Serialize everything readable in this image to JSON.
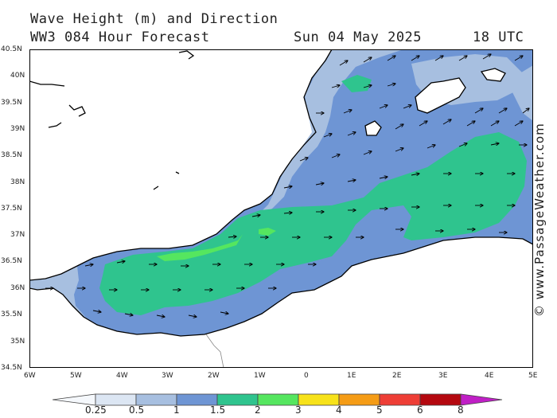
{
  "header": {
    "line1": "Wave Height (m) and Direction",
    "model": "WW3 084 Hour Forecast",
    "date": "Sun 04 May 2025",
    "time": "18 UTC"
  },
  "credit": "© www.PassageWeather.com",
  "axes": {
    "lat_labels": [
      "40.5N",
      "40N",
      "39.5N",
      "39N",
      "38.5N",
      "38N",
      "37.5N",
      "37N",
      "36.5N",
      "36N",
      "35.5N",
      "35N",
      "34.5N"
    ],
    "lon_labels": [
      "6W",
      "5W",
      "4W",
      "3W",
      "2W",
      "1W",
      "0",
      "1E",
      "2E",
      "3E",
      "4E",
      "5E"
    ]
  },
  "colorbar": {
    "labels": [
      "0.25",
      "0.5",
      "1",
      "1.5",
      "2",
      "3",
      "4",
      "5",
      "6",
      "8"
    ],
    "colors": [
      "#dce6f3",
      "#a7bfe0",
      "#6e95d4",
      "#2fc48e",
      "#55e65f",
      "#f7e21a",
      "#f59c16",
      "#ee3e36",
      "#b4080f",
      "#c01fc6"
    ]
  },
  "legend_colors": {
    "land": "#ffffff",
    "coast": "#000000",
    "arrow": "#000000"
  }
}
